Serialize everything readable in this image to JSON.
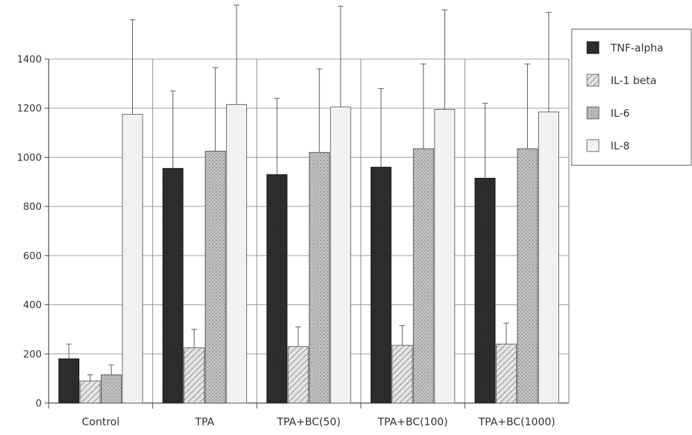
{
  "chart_data": {
    "type": "bar",
    "title": "",
    "xlabel": "",
    "ylabel": "",
    "ylim": [
      0,
      1400
    ],
    "yticks": [
      0,
      200,
      400,
      600,
      800,
      1000,
      1200,
      1400
    ],
    "grid": true,
    "legend_position": "top-right",
    "categories": [
      "Control",
      "TPA",
      "TPA+BC(50)",
      "TPA+BC(100)",
      "TPA+BC(1000)"
    ],
    "series": [
      {
        "name": "TNF-alpha",
        "values": [
          180,
          955,
          930,
          960,
          915
        ],
        "error": [
          60,
          315,
          310,
          320,
          305
        ]
      },
      {
        "name": "IL-1 beta",
        "values": [
          90,
          225,
          230,
          235,
          240
        ],
        "error": [
          25,
          75,
          80,
          80,
          85
        ]
      },
      {
        "name": "IL-6",
        "values": [
          115,
          1025,
          1020,
          1035,
          1035
        ],
        "error": [
          40,
          340,
          340,
          345,
          345
        ]
      },
      {
        "name": "IL-8",
        "values": [
          1175,
          1215,
          1205,
          1195,
          1185
        ],
        "error": [
          385,
          405,
          410,
          405,
          405
        ]
      }
    ],
    "colors": {
      "TNF-alpha": "#2b2b2b",
      "IL-1 beta": "#e2e2e2",
      "IL-6": "#b9b9b9",
      "IL-8": "#f1f1f1"
    },
    "patterns": {
      "TNF-alpha": "solid-dark",
      "IL-1 beta": "diagonal-hatch",
      "IL-6": "stipple",
      "IL-8": "light-solid"
    }
  }
}
